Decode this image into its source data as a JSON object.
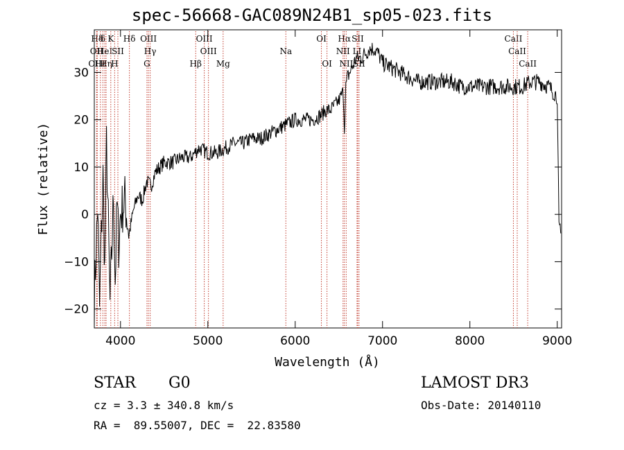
{
  "title": "spec-56668-GAC089N24B1_sp05-023.fits",
  "info": {
    "class": "STAR",
    "subclass": "G0",
    "survey": "LAMOST DR3",
    "cz": "cz = 3.3 ± 340.8 km/s",
    "obs_date": "Obs-Date: 20140110",
    "radec": "RA =  89.55007, DEC =  22.83580"
  },
  "chart_data": {
    "type": "line",
    "title": "spec-56668-GAC089N24B1_sp05-023.fits",
    "xlabel": "Wavelength (Å)",
    "ylabel": "Flux (relative)",
    "xlim": [
      3700,
      9050
    ],
    "ylim": [
      -24,
      39
    ],
    "xticks": [
      4000,
      5000,
      6000,
      7000,
      8000,
      9000
    ],
    "yticks": [
      -20,
      -10,
      0,
      10,
      20,
      30
    ],
    "series": [
      {
        "name": "flux",
        "x": [
          3700,
          3720,
          3740,
          3760,
          3780,
          3800,
          3820,
          3840,
          3860,
          3880,
          3900,
          3920,
          3940,
          3960,
          3980,
          4000,
          4050,
          4100,
          4150,
          4200,
          4250,
          4300,
          4350,
          4400,
          4500,
          4600,
          4700,
          4800,
          4900,
          5000,
          5100,
          5200,
          5300,
          5400,
          5500,
          5600,
          5700,
          5800,
          5900,
          6000,
          6100,
          6200,
          6300,
          6350,
          6400,
          6450,
          6500,
          6550,
          6563,
          6580,
          6600,
          6650,
          6700,
          6750,
          6800,
          6850,
          6900,
          6950,
          7000,
          7100,
          7200,
          7300,
          7400,
          7500,
          7600,
          7700,
          7800,
          7900,
          8000,
          8100,
          8200,
          8300,
          8400,
          8500,
          8600,
          8700,
          8800,
          8900,
          8950,
          9000,
          9020,
          9040
        ],
        "y": [
          -18,
          -8,
          2,
          -20,
          -5,
          8,
          -12,
          15,
          -2,
          -19,
          -8,
          4,
          -14,
          2,
          -6,
          0,
          3,
          -4,
          1,
          4,
          3,
          7,
          6,
          9,
          11,
          11,
          12,
          12,
          14,
          13,
          13,
          14,
          15,
          15,
          16,
          16,
          17,
          18,
          19,
          20,
          20,
          20,
          21,
          22,
          22,
          23,
          24,
          26,
          18,
          27,
          29,
          31,
          33,
          33,
          34,
          35,
          35,
          34,
          32,
          31,
          30,
          29,
          28,
          28,
          28,
          28,
          28,
          27,
          27,
          27,
          27,
          27,
          27,
          27,
          27,
          28,
          28,
          27,
          26,
          25,
          -3,
          -4
        ]
      }
    ],
    "line_markers": [
      {
        "label": "Hδ",
        "x": 3734,
        "row": 0
      },
      {
        "label": "OII",
        "x": 3727,
        "row": 1
      },
      {
        "label": "OIII",
        "x": 3727,
        "row": 2
      },
      {
        "label": "Hε",
        "x": 3770,
        "row": 2
      },
      {
        "label": "Hη",
        "x": 3835,
        "row": 2
      },
      {
        "label": "δ",
        "x": 3798,
        "row": 0
      },
      {
        "label": "HeI",
        "x": 3820,
        "row": 1
      },
      {
        "label": "K",
        "x": 3889,
        "row": 0
      },
      {
        "label": "H",
        "x": 3933,
        "row": 2
      },
      {
        "label": "SII",
        "x": 3970,
        "row": 1
      },
      {
        "label": "Hδ",
        "x": 4102,
        "row": 0
      },
      {
        "label": "OIII",
        "x": 4320,
        "row": 0
      },
      {
        "label": "Hγ",
        "x": 4340,
        "row": 1
      },
      {
        "label": "G",
        "x": 4303,
        "row": 2
      },
      {
        "label": "Hβ",
        "x": 4861,
        "row": 2
      },
      {
        "label": "OIII",
        "x": 4959,
        "row": 0
      },
      {
        "label": "OIII",
        "x": 5007,
        "row": 1
      },
      {
        "label": "Mg",
        "x": 5175,
        "row": 2
      },
      {
        "label": "Na",
        "x": 5893,
        "row": 1
      },
      {
        "label": "OI",
        "x": 6300,
        "row": 0
      },
      {
        "label": "OI",
        "x": 6364,
        "row": 2
      },
      {
        "label": "Hα",
        "x": 6563,
        "row": 0
      },
      {
        "label": "NII",
        "x": 6548,
        "row": 1
      },
      {
        "label": "NII",
        "x": 6584,
        "row": 2
      },
      {
        "label": "SII",
        "x": 6716,
        "row": 0
      },
      {
        "label": "LI",
        "x": 6708,
        "row": 1
      },
      {
        "label": "SII",
        "x": 6731,
        "row": 2
      },
      {
        "label": "CaII",
        "x": 8498,
        "row": 0
      },
      {
        "label": "CaII",
        "x": 8542,
        "row": 1
      },
      {
        "label": "CaII",
        "x": 8662,
        "row": 2
      }
    ]
  }
}
